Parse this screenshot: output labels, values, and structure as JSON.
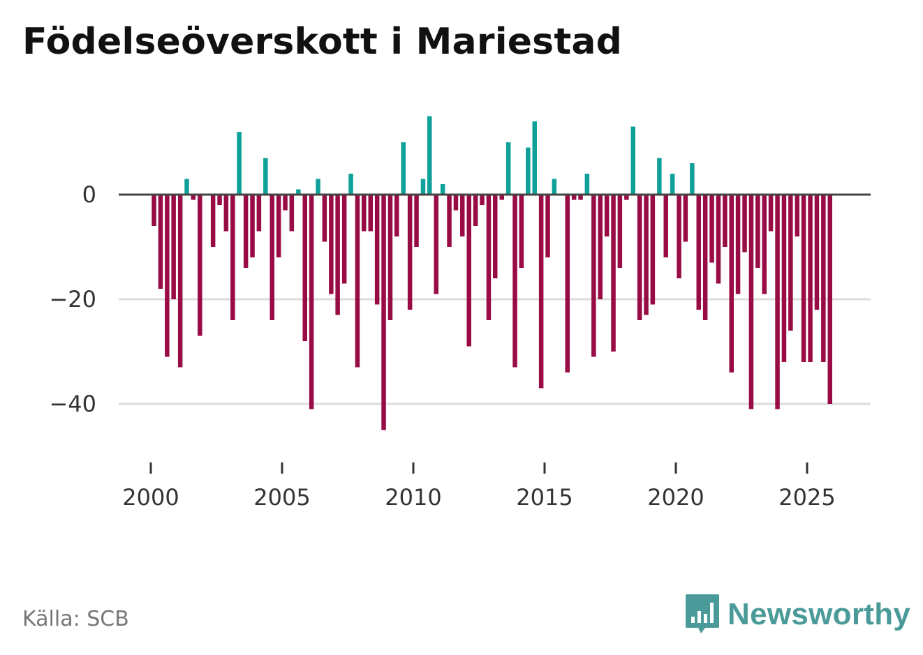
{
  "title": "Födelseöverskott i Mariestad",
  "source": "Källa: SCB",
  "brand": {
    "name": "Newsworthy",
    "icon": "newsworthy-logo-icon"
  },
  "colors": {
    "positive": "#0fa199",
    "negative": "#990b45",
    "zero_line": "#444444",
    "grid": "#dcdcdc",
    "brand": "#4a9a99"
  },
  "chart_data": {
    "type": "bar",
    "title": "Födelseöverskott i Mariestad",
    "xlabel": "",
    "ylabel": "",
    "period": "quarterly",
    "x_start": 2000.0,
    "x_step": 0.25,
    "xlim": [
      1999.25,
      2027.25
    ],
    "ylim": [
      -48,
      22
    ],
    "yticks": [
      0,
      -20,
      -40
    ],
    "ytick_labels": [
      "0",
      "−20",
      "−40"
    ],
    "xticks": [
      2000,
      2005,
      2010,
      2015,
      2020,
      2025
    ],
    "xtick_labels": [
      "2000",
      "2005",
      "2010",
      "2015",
      "2020",
      "2025"
    ],
    "grid": true,
    "values": [
      -6,
      -18,
      -31,
      -20,
      -33,
      3,
      -1,
      -27,
      0,
      -10,
      -2,
      -7,
      -24,
      12,
      -14,
      -12,
      -7,
      7,
      -24,
      -12,
      -3,
      -7,
      1,
      -28,
      -41,
      3,
      -9,
      -19,
      -23,
      -17,
      4,
      -33,
      -7,
      -7,
      -21,
      -45,
      -24,
      -8,
      10,
      -22,
      -10,
      3,
      15,
      -19,
      2,
      -10,
      -3,
      -8,
      -29,
      -6,
      -2,
      -24,
      -16,
      -1,
      10,
      -33,
      -14,
      9,
      14,
      -37,
      -12,
      3,
      0,
      -34,
      -1,
      -1,
      4,
      -31,
      -20,
      -8,
      -30,
      -14,
      -1,
      13,
      -24,
      -23,
      -21,
      7,
      -12,
      4,
      -16,
      -9,
      6,
      -22,
      -24,
      -13,
      -17,
      -10,
      -34,
      -19,
      -11,
      -41,
      -14,
      -19,
      -7,
      -41,
      -32,
      -26,
      -8,
      -32,
      -32,
      -22,
      -32,
      -40
    ]
  }
}
